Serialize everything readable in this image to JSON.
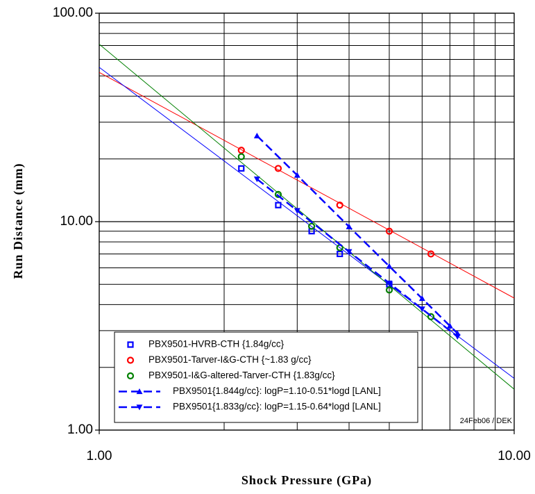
{
  "chart_data": {
    "type": "scatter",
    "x_label": "Shock Pressure (GPa)",
    "y_label": "Run Distance (mm)",
    "annotation": "24Feb06 / DEK",
    "x_log": true,
    "y_log": true,
    "grid": true,
    "xlim": [
      1,
      10
    ],
    "ylim": [
      1,
      100
    ],
    "xticks": [
      {
        "value": 1,
        "label": "1.00"
      },
      {
        "value": 10,
        "label": "10.00"
      }
    ],
    "yticks": [
      {
        "value": 1,
        "label": "1.00"
      },
      {
        "value": 10,
        "label": "10.00"
      },
      {
        "value": 100,
        "label": "100.00"
      }
    ],
    "x_minor_grid": [
      2,
      3,
      4,
      5,
      6,
      7,
      8,
      9
    ],
    "y_minor_grid": [
      2,
      3,
      4,
      5,
      6,
      7,
      8,
      9,
      20,
      30,
      40,
      50,
      60,
      70,
      80,
      90
    ],
    "legend": "lower left",
    "series": [
      {
        "name": "PBX9501-HVRB-CTH {1.84g/cc}",
        "color": "#0000ff",
        "marker": "square",
        "line": "none",
        "x": [
          2.2,
          2.7,
          3.25,
          3.8,
          5.0
        ],
        "values": [
          18,
          12,
          9,
          7,
          5
        ]
      },
      {
        "name": "PBX9501-Tarver-I&G-CTH {~1.83 g/cc}",
        "color": "#ff0000",
        "marker": "circle",
        "line": "none",
        "x": [
          2.2,
          2.7,
          3.8,
          5.0,
          6.3
        ],
        "values": [
          22,
          18,
          12,
          9,
          7
        ]
      },
      {
        "name": "PBX9501-I&G-altered-Tarver-CTH {1.83g/cc}",
        "color": "#008000",
        "marker": "circle",
        "line": "none",
        "x": [
          2.2,
          2.7,
          3.25,
          3.8,
          5.0,
          6.3
        ],
        "values": [
          20.5,
          13.5,
          9.5,
          7.5,
          4.7,
          3.5
        ]
      },
      {
        "name": "PBX9501{1.844g/cc}: logP=1.10-0.51*logd [LANL]",
        "color": "#0000ff",
        "marker": "triangle-up",
        "line": "dashed",
        "x": [
          2.4,
          3,
          4,
          5,
          6,
          7,
          7.3
        ],
        "values": [
          25.8,
          16.7,
          9.46,
          6.11,
          4.28,
          3.16,
          2.91
        ]
      },
      {
        "name": "PBX9501{1.833g/cc}: logP=1.15-0.64*logd [LANL]",
        "color": "#0000ff",
        "marker": "triangle-down",
        "line": "dashed",
        "x": [
          2.4,
          3,
          4,
          5,
          6,
          7.3
        ],
        "values": [
          16.0,
          11.3,
          7.18,
          5.07,
          3.81,
          2.81
        ]
      }
    ],
    "fit_lines": [
      {
        "color": "#ff0000",
        "x": [
          1,
          10
        ],
        "values": [
          52,
          4.3
        ]
      },
      {
        "color": "#0000ff",
        "x": [
          1,
          10
        ],
        "values": [
          55,
          1.77
        ]
      },
      {
        "color": "#008000",
        "x": [
          1,
          10
        ],
        "values": [
          71,
          1.57
        ]
      }
    ]
  }
}
